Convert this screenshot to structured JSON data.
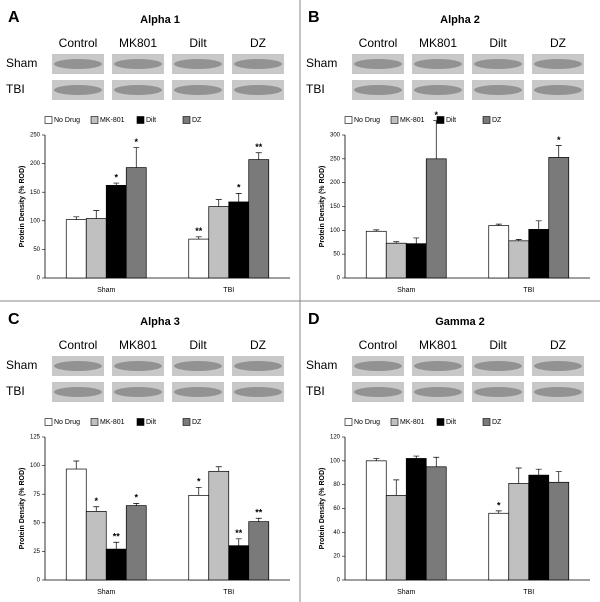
{
  "panels": [
    {
      "letter": "A",
      "blot_columns": [
        "Control",
        "MK801",
        "Dilt",
        "DZ"
      ],
      "blot_rows": [
        "Sham",
        "TBI"
      ]
    },
    {
      "letter": "B",
      "blot_columns": [
        "Control",
        "MK801",
        "Dilt",
        "DZ"
      ],
      "blot_rows": [
        "Sham",
        "TBI"
      ]
    },
    {
      "letter": "C",
      "blot_columns": [
        "Control",
        "MK801",
        "Dilt",
        "DZ"
      ],
      "blot_rows": [
        "Sham",
        "TBI"
      ]
    },
    {
      "letter": "D",
      "blot_columns": [
        "Control",
        "MK801",
        "Dilt",
        "DZ"
      ],
      "blot_rows": [
        "Sham",
        "TBI"
      ]
    }
  ],
  "chart_data": [
    {
      "type": "bar",
      "title": "Alpha 1",
      "y_label": "Protein Density (% ROD)",
      "categories": [
        "Sham",
        "TBI"
      ],
      "ylim": [
        0,
        250
      ],
      "yticks": [
        0,
        50,
        100,
        150,
        200,
        250
      ],
      "series": [
        {
          "name": "No Drug",
          "color": "#ffffff",
          "values": [
            102,
            68
          ],
          "errors": [
            5,
            4
          ],
          "significance": [
            null,
            "**"
          ]
        },
        {
          "name": "MK-801",
          "color": "#c0c0c0",
          "values": [
            104,
            125
          ],
          "errors": [
            14,
            12
          ],
          "significance": [
            null,
            null
          ]
        },
        {
          "name": "Dilt",
          "color": "#000000",
          "values": [
            162,
            133
          ],
          "errors": [
            4,
            15
          ],
          "significance": [
            "*",
            "*"
          ]
        },
        {
          "name": "DZ",
          "color": "#7a7a7a",
          "values": [
            193,
            207
          ],
          "errors": [
            35,
            12
          ],
          "significance": [
            "*",
            "**"
          ]
        }
      ]
    },
    {
      "type": "bar",
      "title": "Alpha 2",
      "y_label": "Protein Density (% ROD)",
      "categories": [
        "Sham",
        "TBI"
      ],
      "ylim": [
        0,
        300
      ],
      "yticks": [
        0,
        50,
        100,
        150,
        200,
        250,
        300
      ],
      "series": [
        {
          "name": "No Drug",
          "color": "#ffffff",
          "values": [
            98,
            110
          ],
          "errors": [
            3,
            3
          ],
          "significance": [
            null,
            null
          ]
        },
        {
          "name": "MK-801",
          "color": "#c0c0c0",
          "values": [
            73,
            78
          ],
          "errors": [
            3,
            3
          ],
          "significance": [
            null,
            null
          ]
        },
        {
          "name": "Dilt",
          "color": "#000000",
          "values": [
            72,
            102
          ],
          "errors": [
            12,
            18
          ],
          "significance": [
            null,
            null
          ]
        },
        {
          "name": "DZ",
          "color": "#7a7a7a",
          "values": [
            250,
            253
          ],
          "errors": [
            80,
            25
          ],
          "significance": [
            "*",
            "*"
          ]
        }
      ]
    },
    {
      "type": "bar",
      "title": "Alpha 3",
      "y_label": "Protein Density (% ROD)",
      "categories": [
        "Sham",
        "TBI"
      ],
      "ylim": [
        0,
        125
      ],
      "yticks": [
        0,
        25,
        50,
        75,
        100,
        125
      ],
      "series": [
        {
          "name": "No Drug",
          "color": "#ffffff",
          "values": [
            97,
            74
          ],
          "errors": [
            7,
            7
          ],
          "significance": [
            null,
            "*"
          ]
        },
        {
          "name": "MK-801",
          "color": "#c0c0c0",
          "values": [
            60,
            95
          ],
          "errors": [
            4,
            4
          ],
          "significance": [
            "*",
            null
          ]
        },
        {
          "name": "Dilt",
          "color": "#000000",
          "values": [
            27,
            30
          ],
          "errors": [
            6,
            6
          ],
          "significance": [
            "**",
            "**"
          ]
        },
        {
          "name": "DZ",
          "color": "#7a7a7a",
          "values": [
            65,
            51
          ],
          "errors": [
            2,
            3
          ],
          "significance": [
            "*",
            "**"
          ]
        }
      ]
    },
    {
      "type": "bar",
      "title": "Gamma 2",
      "y_label": "Protein Density (% ROD)",
      "categories": [
        "Sham",
        "TBI"
      ],
      "ylim": [
        0,
        120
      ],
      "yticks": [
        0,
        20,
        40,
        60,
        80,
        100,
        120
      ],
      "series": [
        {
          "name": "No Drug",
          "color": "#ffffff",
          "values": [
            100,
            56
          ],
          "errors": [
            2,
            2
          ],
          "significance": [
            null,
            "*"
          ]
        },
        {
          "name": "MK-801",
          "color": "#c0c0c0",
          "values": [
            71,
            81
          ],
          "errors": [
            13,
            13
          ],
          "significance": [
            null,
            null
          ]
        },
        {
          "name": "Dilt",
          "color": "#000000",
          "values": [
            102,
            88
          ],
          "errors": [
            2,
            5
          ],
          "significance": [
            null,
            null
          ]
        },
        {
          "name": "DZ",
          "color": "#7a7a7a",
          "values": [
            95,
            82
          ],
          "errors": [
            8,
            9
          ],
          "significance": [
            null,
            null
          ]
        }
      ]
    }
  ]
}
